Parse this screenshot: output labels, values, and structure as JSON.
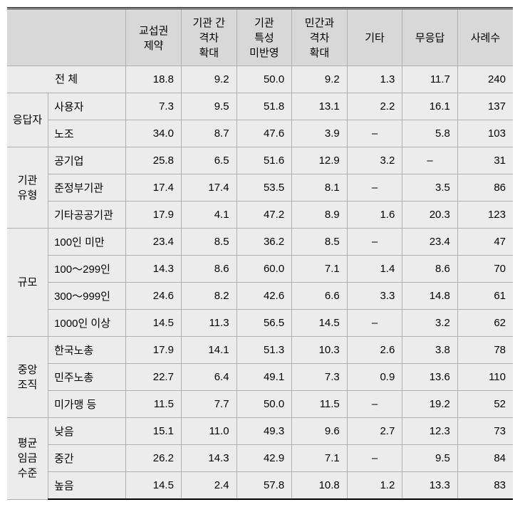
{
  "columns": [
    "교섭권\n제약",
    "기관 간\n격차\n확대",
    "기관\n특성\n미반영",
    "민간과\n격차\n확대",
    "기타",
    "무응답",
    "사례수"
  ],
  "groups": [
    {
      "label": "전 체",
      "spanBoth": true,
      "rows": [
        {
          "label": "",
          "values": [
            "18.8",
            "9.2",
            "50.0",
            "9.2",
            "1.3",
            "11.7",
            "240"
          ]
        }
      ]
    },
    {
      "label": "응답자",
      "rows": [
        {
          "label": "사용자",
          "values": [
            "7.3",
            "9.5",
            "51.8",
            "13.1",
            "2.2",
            "16.1",
            "137"
          ]
        },
        {
          "label": "노조",
          "values": [
            "34.0",
            "8.7",
            "47.6",
            "3.9",
            "–",
            "5.8",
            "103"
          ]
        }
      ]
    },
    {
      "label": "기관\n유형",
      "rows": [
        {
          "label": "공기업",
          "values": [
            "25.8",
            "6.5",
            "51.6",
            "12.9",
            "3.2",
            "–",
            "31"
          ]
        },
        {
          "label": "준정부기관",
          "values": [
            "17.4",
            "17.4",
            "53.5",
            "8.1",
            "–",
            "3.5",
            "86"
          ]
        },
        {
          "label": "기타공공기관",
          "values": [
            "17.9",
            "4.1",
            "47.2",
            "8.9",
            "1.6",
            "20.3",
            "123"
          ]
        }
      ]
    },
    {
      "label": "규모",
      "rows": [
        {
          "label": "100인 미만",
          "values": [
            "23.4",
            "8.5",
            "36.2",
            "8.5",
            "–",
            "23.4",
            "47"
          ]
        },
        {
          "label": "100～299인",
          "values": [
            "14.3",
            "8.6",
            "60.0",
            "7.1",
            "1.4",
            "8.6",
            "70"
          ]
        },
        {
          "label": "300～999인",
          "values": [
            "24.6",
            "8.2",
            "42.6",
            "6.6",
            "3.3",
            "14.8",
            "61"
          ]
        },
        {
          "label": "1000인 이상",
          "values": [
            "14.5",
            "11.3",
            "56.5",
            "14.5",
            "–",
            "3.2",
            "62"
          ]
        }
      ]
    },
    {
      "label": "중앙\n조직",
      "rows": [
        {
          "label": "한국노총",
          "values": [
            "17.9",
            "14.1",
            "51.3",
            "10.3",
            "2.6",
            "3.8",
            "78"
          ]
        },
        {
          "label": "민주노총",
          "values": [
            "22.7",
            "6.4",
            "49.1",
            "7.3",
            "0.9",
            "13.6",
            "110"
          ]
        },
        {
          "label": "미가맹 등",
          "values": [
            "11.5",
            "7.7",
            "50.0",
            "11.5",
            "–",
            "19.2",
            "52"
          ]
        }
      ]
    },
    {
      "label": "평균\n임금\n수준",
      "rows": [
        {
          "label": "낮음",
          "values": [
            "15.1",
            "11.0",
            "49.3",
            "9.6",
            "2.7",
            "12.3",
            "73"
          ]
        },
        {
          "label": "중간",
          "values": [
            "26.2",
            "14.3",
            "42.9",
            "7.1",
            "–",
            "9.5",
            "84"
          ]
        },
        {
          "label": "높음",
          "values": [
            "14.5",
            "2.4",
            "57.8",
            "10.8",
            "1.2",
            "13.3",
            "83"
          ]
        }
      ]
    }
  ],
  "style": {
    "background": "#ececec",
    "header_bg": "#d8d8d8",
    "border_color": "#b0b0b0",
    "section_border": "#707070"
  }
}
